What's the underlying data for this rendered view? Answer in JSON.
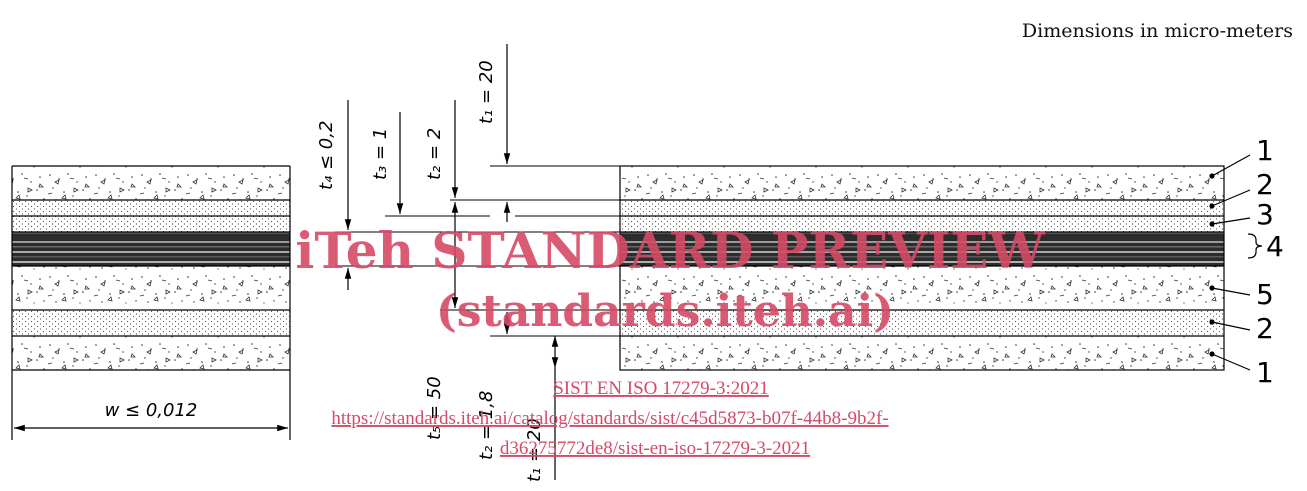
{
  "note": "Dimensions in micro-meters",
  "width_label": "w ≤ 0,012",
  "thickness_labels": {
    "t4": "t₄ ≤ 0,2",
    "t3": "t₃ = 1",
    "t2_top": "t₂ = 2",
    "t1_top": "t₁ = 20",
    "t5": "t₅ = 50",
    "t2_bottom": "t₂ = 1,8",
    "t1_bottom": "t₁ = 20"
  },
  "callouts": [
    "1",
    "2",
    "3",
    "4",
    "5",
    "2",
    "1"
  ],
  "watermark": {
    "line1": "iTeh STANDARD PREVIEW",
    "line2": "(standards.iteh.ai)",
    "link1": "SIST EN ISO 17279-3:2021",
    "link2": "https://standards.iteh.ai/catalog/standards/sist/c45d5873-b07f-44b8-9b2f-",
    "link3": "d36275772de8/sist-en-iso-17279-3-2021"
  },
  "colors": {
    "line": "#000000",
    "watermark": "#d54a66"
  }
}
